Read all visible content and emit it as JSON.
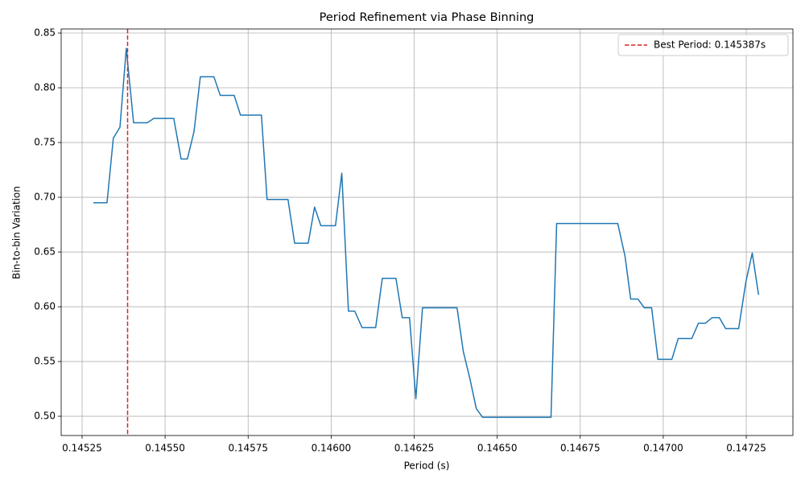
{
  "chart_data": {
    "type": "line",
    "title": "Period Refinement via Phase Binning",
    "x_label": "Period (s)",
    "y_label": "Bin-to-bin Variation",
    "x": [
      0.145284,
      0.145325,
      0.145344,
      0.145364,
      0.145383,
      0.145405,
      0.145446,
      0.145466,
      0.145526,
      0.145548,
      0.145567,
      0.145587,
      0.145606,
      0.145647,
      0.145666,
      0.145708,
      0.145727,
      0.14579,
      0.145807,
      0.14587,
      0.14589,
      0.145931,
      0.14595,
      0.145969,
      0.146013,
      0.146032,
      0.146052,
      0.146071,
      0.146093,
      0.146134,
      0.146154,
      0.146195,
      0.146214,
      0.146236,
      0.146255,
      0.146275,
      0.146379,
      0.146398,
      0.146418,
      0.146437,
      0.146456,
      0.146662,
      0.146679,
      0.146863,
      0.146885,
      0.146902,
      0.146924,
      0.146943,
      0.146965,
      0.146984,
      0.147026,
      0.147045,
      0.147086,
      0.147106,
      0.147127,
      0.147147,
      0.147169,
      0.147188,
      0.147227,
      0.147249,
      0.147268,
      0.147287
    ],
    "series": [
      {
        "color": "#1f77b4",
        "values": [
          0.695,
          0.695,
          0.754,
          0.764,
          0.836,
          0.768,
          0.768,
          0.772,
          0.772,
          0.735,
          0.735,
          0.76,
          0.81,
          0.81,
          0.793,
          0.793,
          0.775,
          0.775,
          0.698,
          0.698,
          0.658,
          0.658,
          0.691,
          0.674,
          0.674,
          0.722,
          0.596,
          0.596,
          0.581,
          0.581,
          0.626,
          0.626,
          0.59,
          0.59,
          0.516,
          0.599,
          0.599,
          0.559,
          0.534,
          0.507,
          0.499,
          0.499,
          0.676,
          0.676,
          0.646,
          0.607,
          0.607,
          0.599,
          0.599,
          0.552,
          0.552,
          0.571,
          0.571,
          0.585,
          0.585,
          0.59,
          0.59,
          0.58,
          0.58,
          0.623,
          0.649,
          0.611
        ]
      }
    ],
    "best_period": {
      "value": 0.145387,
      "label": "Best Period: 0.145387s",
      "color": "#d62728"
    },
    "xlim": [
      0.145187,
      0.1473905
    ],
    "ylim": [
      0.4824,
      0.8537
    ],
    "xticks": [
      0.14525,
      {
        "value": 0.1455,
        "label": "0.14550"
      },
      0.14575,
      {
        "value": 0.146,
        "label": "0.14600"
      },
      0.14625,
      {
        "value": 0.1465,
        "label": "0.14650"
      },
      0.14675,
      {
        "value": 0.147,
        "label": "0.14700"
      },
      0.14725
    ],
    "yticks": [
      {
        "value": 0.5,
        "label": "0.50"
      },
      0.55,
      {
        "value": 0.6,
        "label": "0.60"
      },
      0.65,
      {
        "value": 0.7,
        "label": "0.70"
      },
      0.75,
      {
        "value": 0.8,
        "label": "0.80"
      },
      0.85
    ],
    "grid": true,
    "legend": "upper right"
  }
}
